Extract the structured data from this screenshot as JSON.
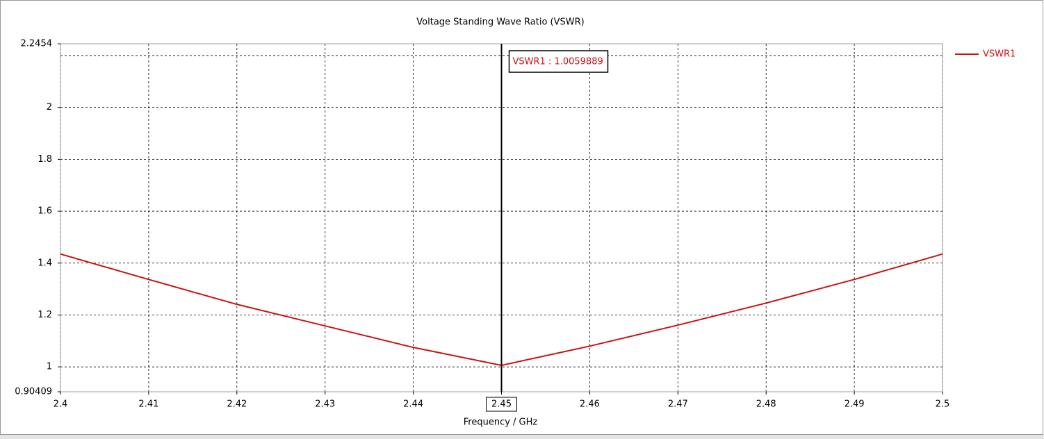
{
  "chart_data": {
    "type": "line",
    "title": "Voltage Standing Wave Ratio (VSWR)",
    "x_label": "Frequency / GHz",
    "x": [
      2.4,
      2.41,
      2.42,
      2.43,
      2.44,
      2.45,
      2.46,
      2.47,
      2.48,
      2.49,
      2.5
    ],
    "series": [
      {
        "name": "VSWR1",
        "color": "#cc1111",
        "values": [
          1.435,
          1.337,
          1.241,
          1.158,
          1.075,
          1.006,
          1.08,
          1.161,
          1.246,
          1.337,
          1.435
        ]
      }
    ],
    "xlim": [
      2.4,
      2.5
    ],
    "xticks": [
      2.4,
      2.41,
      2.42,
      2.43,
      2.44,
      2.45,
      2.46,
      2.47,
      2.48,
      2.49,
      2.5
    ],
    "ylim": [
      0.90409,
      2.2454
    ],
    "yticks": [
      0.90409,
      1,
      1.2,
      1.4,
      1.6,
      1.8,
      2,
      2.2454
    ],
    "ygrid": [
      1,
      1.2,
      1.4,
      1.6,
      1.8,
      2,
      2.2
    ],
    "grid": true,
    "legend": "top-right",
    "marker": {
      "x": 2.45,
      "label": "VSWR1 : 1.0059889"
    }
  }
}
